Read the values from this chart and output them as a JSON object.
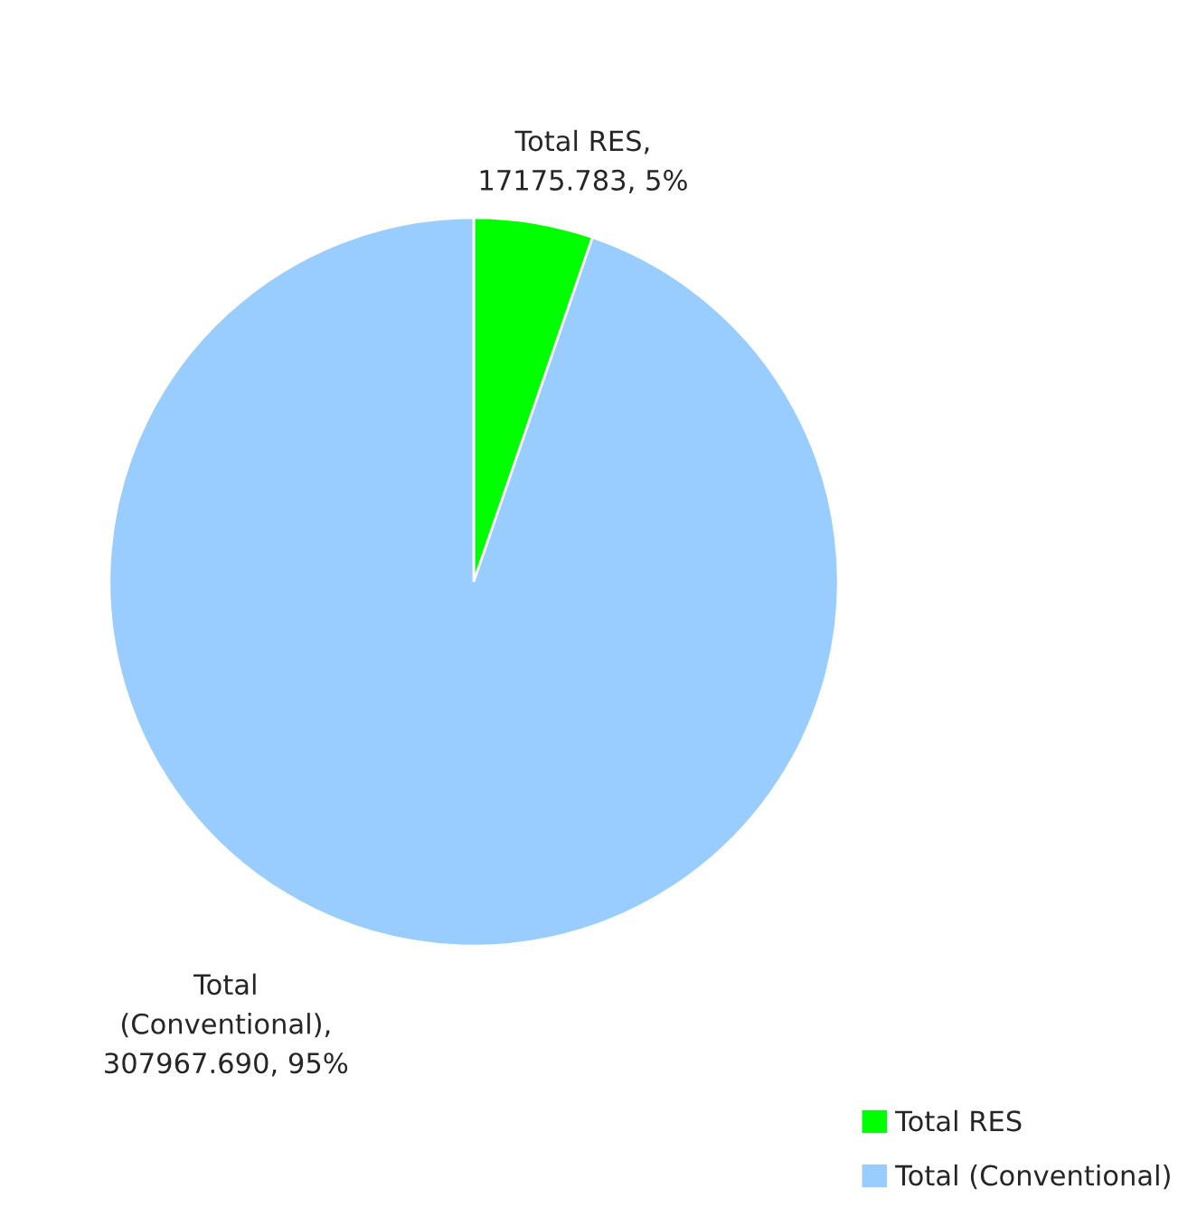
{
  "chart_data": {
    "type": "pie",
    "categories": [
      "Total RES",
      "Total (Conventional)"
    ],
    "values": [
      17175.783,
      307967.69
    ],
    "colors": [
      "#00ff00",
      "#99ccff"
    ],
    "value_labels": [
      "Total RES,\n17175.783, 5%",
      "Total\n(Conventional),\n307967.690, 95%"
    ],
    "legend": "bottom right"
  }
}
